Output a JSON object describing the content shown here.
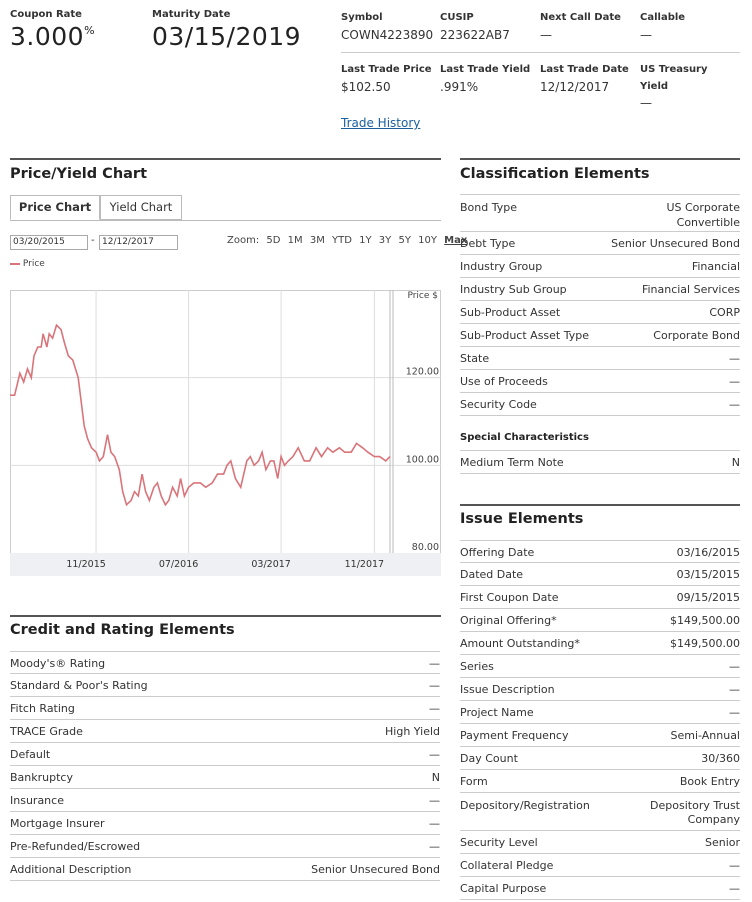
{
  "header": {
    "coupon_rate_label": "Coupon Rate",
    "coupon_rate_value": "3.000",
    "coupon_rate_unit": "%",
    "maturity_label": "Maturity Date",
    "maturity_value": "03/15/2019",
    "symbol_label": "Symbol",
    "symbol_value": "COWN4223890",
    "cusip_label": "CUSIP",
    "cusip_value": "223622AB7",
    "next_call_label": "Next Call Date",
    "next_call_value": "—",
    "callable_label": "Callable",
    "callable_value": "—",
    "last_price_label": "Last Trade Price",
    "last_price_value": "$102.50",
    "last_yield_label": "Last Trade Yield",
    "last_yield_value": ".991%",
    "last_date_label": "Last Trade Date",
    "last_date_value": "12/12/2017",
    "treasury_label_1": "US Treasury",
    "treasury_label_2": "Yield",
    "treasury_value": "—",
    "trade_history_link": "Trade History"
  },
  "chart_section": {
    "title": "Price/Yield Chart",
    "tabs": [
      "Price Chart",
      "Yield Chart"
    ],
    "from_date": "03/20/2015",
    "date_sep": "-",
    "to_date": "12/12/2017",
    "zoom_label": "Zoom:",
    "zoom_options": [
      "5D",
      "1M",
      "3M",
      "YTD",
      "1Y",
      "3Y",
      "5Y",
      "10Y",
      "Max"
    ],
    "legend_label": "Price",
    "line_color": "#d9747a"
  },
  "chart_data": {
    "type": "line",
    "series": [
      {
        "name": "Price",
        "x": [
          "2015-03-20",
          "2015-04-01",
          "2015-04-15",
          "2015-04-25",
          "2015-05-05",
          "2015-05-15",
          "2015-05-22",
          "2015-06-01",
          "2015-06-10",
          "2015-06-15",
          "2015-06-25",
          "2015-07-01",
          "2015-07-10",
          "2015-07-20",
          "2015-08-01",
          "2015-08-10",
          "2015-08-20",
          "2015-09-01",
          "2015-09-15",
          "2015-10-01",
          "2015-10-10",
          "2015-10-20",
          "2015-11-01",
          "2015-11-10",
          "2015-11-20",
          "2015-12-01",
          "2015-12-10",
          "2015-12-20",
          "2016-01-01",
          "2016-01-10",
          "2016-01-20",
          "2016-02-01",
          "2016-02-10",
          "2016-02-20",
          "2016-03-01",
          "2016-03-10",
          "2016-03-20",
          "2016-04-01",
          "2016-04-10",
          "2016-04-20",
          "2016-05-01",
          "2016-05-10",
          "2016-05-20",
          "2016-06-01",
          "2016-06-10",
          "2016-06-20",
          "2016-07-01",
          "2016-07-15",
          "2016-08-01",
          "2016-08-15",
          "2016-09-01",
          "2016-09-15",
          "2016-10-01",
          "2016-10-10",
          "2016-10-20",
          "2016-11-01",
          "2016-11-15",
          "2016-12-01",
          "2016-12-10",
          "2016-12-20",
          "2017-01-01",
          "2017-01-10",
          "2017-01-20",
          "2017-02-01",
          "2017-02-10",
          "2017-02-20",
          "2017-03-01",
          "2017-03-10",
          "2017-03-20",
          "2017-04-01",
          "2017-04-15",
          "2017-05-01",
          "2017-05-15",
          "2017-06-01",
          "2017-06-15",
          "2017-07-01",
          "2017-07-15",
          "2017-08-01",
          "2017-08-15",
          "2017-09-01",
          "2017-09-15",
          "2017-10-01",
          "2017-10-15",
          "2017-11-01",
          "2017-11-15",
          "2017-12-01",
          "2017-12-12"
        ],
        "values": [
          116,
          116,
          121,
          119,
          122,
          120,
          125,
          127,
          127,
          130,
          127,
          130,
          129,
          132,
          131,
          128,
          125,
          124,
          120,
          109,
          106,
          104,
          103,
          101,
          102,
          107,
          103,
          102,
          99,
          94,
          91,
          92,
          94,
          93,
          98,
          94,
          92,
          95,
          96,
          93,
          91,
          92,
          95,
          93,
          97,
          93,
          95,
          96,
          96,
          95,
          96,
          98,
          98,
          100,
          101,
          97,
          95,
          101,
          102,
          100,
          101,
          103,
          99,
          101,
          101,
          97,
          102,
          100,
          101,
          102,
          104,
          101,
          101,
          104,
          102,
          104,
          103,
          104,
          103,
          103,
          105,
          104,
          103,
          102,
          102,
          101,
          102
        ]
      }
    ],
    "xticks": [
      "11/2015",
      "07/2016",
      "03/2017",
      "11/2017"
    ],
    "yticks": [
      "80.00",
      "100.00",
      "120.00"
    ],
    "ylabel": "Price $",
    "ylim": [
      80,
      140
    ],
    "grid": true
  },
  "credit": {
    "title": "Credit and Rating Elements",
    "rows": [
      {
        "k": "Moody's® Rating",
        "v": "—"
      },
      {
        "k": "Standard & Poor's Rating",
        "v": "—"
      },
      {
        "k": "Fitch Rating",
        "v": "—"
      },
      {
        "k": "TRACE Grade",
        "v": "High Yield"
      },
      {
        "k": "Default",
        "v": "—"
      },
      {
        "k": "Bankruptcy",
        "v": "N"
      },
      {
        "k": "Insurance",
        "v": "—"
      },
      {
        "k": "Mortgage Insurer",
        "v": "—"
      },
      {
        "k": "Pre-Refunded/Escrowed",
        "v": "—"
      },
      {
        "k": "Additional Description",
        "v": "Senior Unsecured Bond"
      }
    ]
  },
  "classification": {
    "title": "Classification Elements",
    "bond_type_label": "Bond Type",
    "bond_type_line1": "US Corporate",
    "bond_type_line2": "Convertible",
    "rows": [
      {
        "k": "Debt Type",
        "v": "Senior Unsecured Bond"
      },
      {
        "k": "Industry Group",
        "v": "Financial"
      },
      {
        "k": "Industry Sub Group",
        "v": "Financial Services"
      },
      {
        "k": "Sub-Product Asset",
        "v": "CORP"
      },
      {
        "k": "Sub-Product Asset Type",
        "v": "Corporate Bond"
      },
      {
        "k": "State",
        "v": "—"
      },
      {
        "k": "Use of Proceeds",
        "v": "—"
      },
      {
        "k": "Security Code",
        "v": "—"
      }
    ],
    "special_title": "Special Characteristics",
    "medium_term_label": "Medium Term Note",
    "medium_term_value": "N"
  },
  "issue": {
    "title": "Issue Elements",
    "rows": [
      {
        "k": "Offering Date",
        "v": "03/16/2015"
      },
      {
        "k": "Dated Date",
        "v": "03/15/2015"
      },
      {
        "k": "First Coupon Date",
        "v": "09/15/2015"
      },
      {
        "k": "Original Offering*",
        "v": "$149,500.00"
      },
      {
        "k": "Amount Outstanding*",
        "v": "$149,500.00"
      },
      {
        "k": "Series",
        "v": "—"
      },
      {
        "k": "Issue Description",
        "v": "—"
      },
      {
        "k": "Project Name",
        "v": "—"
      },
      {
        "k": "Payment Frequency",
        "v": "Semi-Annual"
      },
      {
        "k": "Day Count",
        "v": "30/360"
      },
      {
        "k": "Form",
        "v": "Book Entry"
      }
    ],
    "depository_label": "Depository/Registration",
    "depository_line1": "Depository Trust",
    "depository_line2": "Company",
    "rows2": [
      {
        "k": "Security Level",
        "v": "Senior"
      },
      {
        "k": "Collateral Pledge",
        "v": "—"
      },
      {
        "k": "Capital Purpose",
        "v": "—"
      }
    ]
  }
}
